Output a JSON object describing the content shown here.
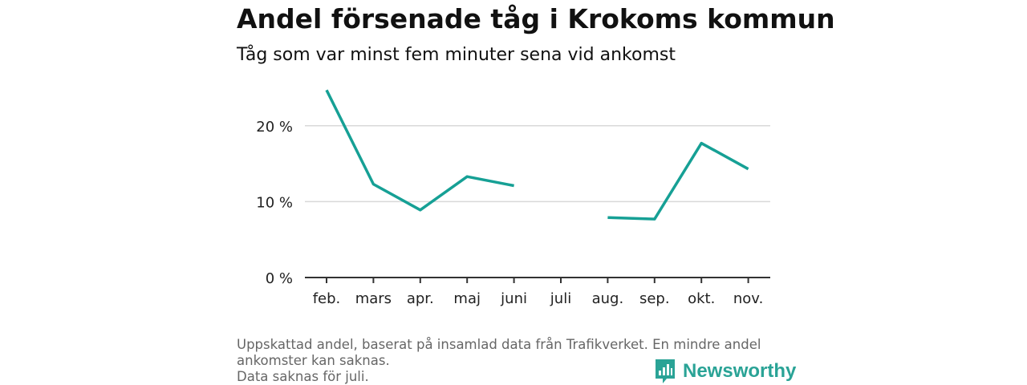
{
  "header": {
    "title": "Andel försenade tåg i Krokoms kommun",
    "subtitle": "Tåg som var minst fem minuter sena vid ankomst"
  },
  "footnote": {
    "line1": "Uppskattad andel, baserat på insamlad data från Trafikverket. En mindre andel",
    "line2": "ankomster kan saknas.",
    "line3": "Data saknas för juli."
  },
  "brand": {
    "name": "Newsworthy",
    "icon": "newsworthy-logo-icon",
    "color": "#2aa396"
  },
  "chart_data": {
    "type": "line",
    "categories": [
      "feb.",
      "mars",
      "apr.",
      "maj",
      "juni",
      "juli",
      "aug.",
      "sep.",
      "okt.",
      "nov."
    ],
    "series": [
      {
        "values": [
          24.7,
          12.3,
          8.9,
          13.3,
          12.1,
          null,
          7.9,
          7.7,
          17.7,
          14.3
        ],
        "color": "#16a095"
      }
    ],
    "yticks": [
      0,
      10,
      20
    ],
    "ytick_labels": [
      "0 %",
      "10 %",
      "20 %"
    ],
    "ylim": [
      0,
      26
    ],
    "grid": true,
    "legend": "none"
  }
}
